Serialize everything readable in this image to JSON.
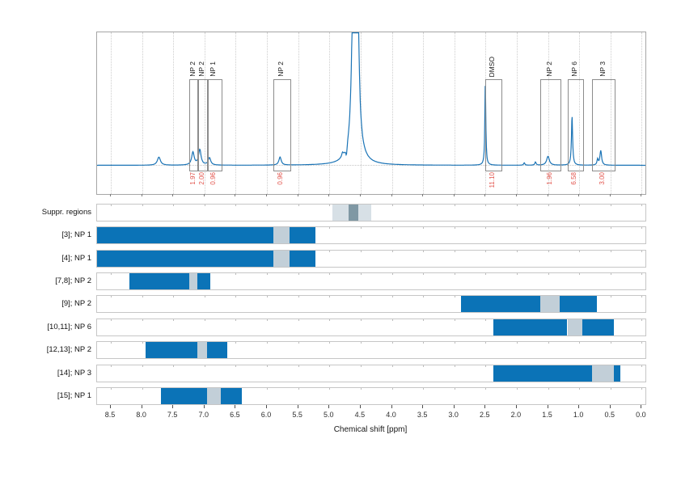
{
  "chart_data": {
    "type": "line",
    "x_axis": {
      "label": "Chemical shift [ppm]",
      "range_ppm": [
        8.72,
        -0.06
      ],
      "direction": "reversed",
      "tick_labels": [
        "8.5",
        "8.0",
        "7.5",
        "7.0",
        "6.5",
        "6.0",
        "5.5",
        "5.0",
        "4.5",
        "4.0",
        "3.5",
        "3.0",
        "2.5",
        "2.0",
        "1.5",
        "1.0",
        "0.5",
        "0.0"
      ]
    },
    "spectrum_peaks": [
      {
        "ppm": 7.73,
        "intensity": 10,
        "width_ppm": 0.03
      },
      {
        "ppm": 7.185,
        "intensity": 16,
        "width_ppm": 0.024
      },
      {
        "ppm": 7.075,
        "intensity": 19,
        "width_ppm": 0.024
      },
      {
        "ppm": 6.92,
        "intensity": 9,
        "width_ppm": 0.024
      },
      {
        "ppm": 5.79,
        "intensity": 10,
        "width_ppm": 0.022
      },
      {
        "ppm": 4.79,
        "intensity": 5,
        "width_ppm": 0.015
      },
      {
        "ppm": 4.727,
        "intensity": -12,
        "width_ppm": 0.013
      },
      {
        "ppm": 4.585,
        "intensity": 14000,
        "width_ppm": 0.006
      },
      {
        "ppm": 2.503,
        "intensity": 103,
        "width_ppm": 0.009
      },
      {
        "ppm": 1.88,
        "intensity": 3,
        "width_ppm": 0.012
      },
      {
        "ppm": 1.7,
        "intensity": 4,
        "width_ppm": 0.012
      },
      {
        "ppm": 1.5,
        "intensity": 11,
        "width_ppm": 0.026
      },
      {
        "ppm": 1.115,
        "intensity": 62,
        "width_ppm": 0.011
      },
      {
        "ppm": 0.705,
        "intensity": 7,
        "width_ppm": 0.012
      },
      {
        "ppm": 0.655,
        "intensity": 18,
        "width_ppm": 0.016
      }
    ],
    "peak_regions": [
      {
        "label": "NP 2",
        "from_ppm": 7.24,
        "to_ppm": 7.11,
        "integral": "1.97"
      },
      {
        "label": "NP 2",
        "from_ppm": 7.11,
        "to_ppm": 6.96,
        "integral": "2.00"
      },
      {
        "label": "NP 1",
        "from_ppm": 6.96,
        "to_ppm": 6.74,
        "integral": "0.96"
      },
      {
        "label": "NP 2",
        "from_ppm": 5.9,
        "to_ppm": 5.64,
        "integral": "0.96"
      },
      {
        "label": "DMSO",
        "from_ppm": 2.51,
        "to_ppm": 2.26,
        "integral": "11.10"
      },
      {
        "label": "NP 2",
        "from_ppm": 1.62,
        "to_ppm": 1.31,
        "integral": "1.96"
      },
      {
        "label": "NP 6",
        "from_ppm": 1.19,
        "to_ppm": 0.95,
        "integral": "6.58"
      },
      {
        "label": "NP 3",
        "from_ppm": 0.79,
        "to_ppm": 0.45,
        "integral": "3.00"
      }
    ],
    "tracks": [
      {
        "label": "Suppr. regions",
        "segments": [
          {
            "from_ppm": 4.95,
            "to_ppm": 4.69,
            "kind": "suppr_light"
          },
          {
            "from_ppm": 4.69,
            "to_ppm": 4.54,
            "kind": "suppr_dark"
          },
          {
            "from_ppm": 4.54,
            "to_ppm": 4.33,
            "kind": "suppr_light"
          }
        ]
      },
      {
        "label": "[3]; NP 1",
        "segments": [
          {
            "from_ppm": 8.72,
            "to_ppm": 5.9,
            "kind": "blue"
          },
          {
            "from_ppm": 5.9,
            "to_ppm": 5.64,
            "kind": "gap"
          },
          {
            "from_ppm": 5.64,
            "to_ppm": 5.22,
            "kind": "blue"
          }
        ]
      },
      {
        "label": "[4]; NP 1",
        "segments": [
          {
            "from_ppm": 8.72,
            "to_ppm": 5.9,
            "kind": "blue"
          },
          {
            "from_ppm": 5.9,
            "to_ppm": 5.64,
            "kind": "gap"
          },
          {
            "from_ppm": 5.64,
            "to_ppm": 5.22,
            "kind": "blue"
          }
        ]
      },
      {
        "label": "[7,8]; NP 2",
        "segments": [
          {
            "from_ppm": 8.2,
            "to_ppm": 7.24,
            "kind": "blue"
          },
          {
            "from_ppm": 7.24,
            "to_ppm": 7.11,
            "kind": "gap"
          },
          {
            "from_ppm": 7.11,
            "to_ppm": 6.9,
            "kind": "blue"
          }
        ]
      },
      {
        "label": "[9]; NP 2",
        "segments": [
          {
            "from_ppm": 2.89,
            "to_ppm": 1.62,
            "kind": "blue"
          },
          {
            "from_ppm": 1.62,
            "to_ppm": 1.31,
            "kind": "gap"
          },
          {
            "from_ppm": 1.31,
            "to_ppm": 0.72,
            "kind": "blue"
          }
        ]
      },
      {
        "label": "[10,11]; NP 6",
        "segments": [
          {
            "from_ppm": 2.38,
            "to_ppm": 1.19,
            "kind": "blue"
          },
          {
            "from_ppm": 1.19,
            "to_ppm": 0.95,
            "kind": "gap"
          },
          {
            "from_ppm": 0.95,
            "to_ppm": 0.44,
            "kind": "blue"
          }
        ]
      },
      {
        "label": "[12,13]; NP 2",
        "segments": [
          {
            "from_ppm": 7.94,
            "to_ppm": 7.11,
            "kind": "blue"
          },
          {
            "from_ppm": 7.11,
            "to_ppm": 6.96,
            "kind": "gap"
          },
          {
            "from_ppm": 6.96,
            "to_ppm": 6.63,
            "kind": "blue"
          }
        ]
      },
      {
        "label": "[14]; NP 3",
        "segments": [
          {
            "from_ppm": 2.38,
            "to_ppm": 0.79,
            "kind": "blue"
          },
          {
            "from_ppm": 0.79,
            "to_ppm": 0.45,
            "kind": "gap"
          },
          {
            "from_ppm": 0.45,
            "to_ppm": 0.34,
            "kind": "blue"
          }
        ]
      },
      {
        "label": "[15]; NP 1",
        "segments": [
          {
            "from_ppm": 7.7,
            "to_ppm": 6.96,
            "kind": "blue"
          },
          {
            "from_ppm": 6.96,
            "to_ppm": 6.74,
            "kind": "gap"
          },
          {
            "from_ppm": 6.74,
            "to_ppm": 6.4,
            "kind": "blue"
          }
        ]
      }
    ],
    "colors": {
      "spectrum_line": "#1b74b6",
      "bar_blue": "#0b73b7",
      "bar_gap": "#c2cfd8",
      "suppr_light": "#d7e0e6",
      "suppr_dark": "#7f98a4",
      "integral_text": "#e2534b",
      "grid": "#cdcdcd"
    }
  }
}
